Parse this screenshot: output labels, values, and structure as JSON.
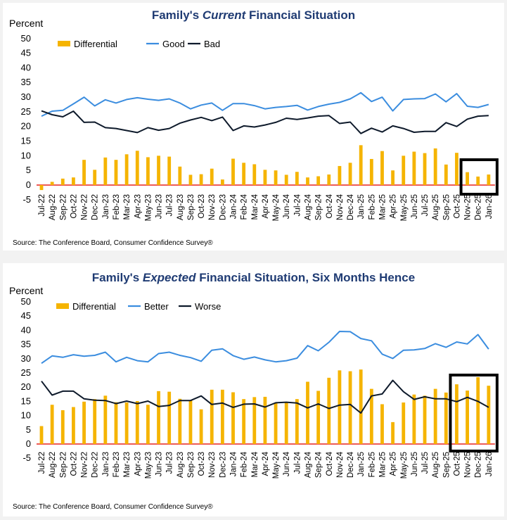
{
  "chart_data": [
    {
      "type": "bar+line",
      "title_pre": "Family's ",
      "title_em": "Current",
      "title_post": " Financial Situation",
      "ylabel": "Percent",
      "ylim": [
        -5,
        50
      ],
      "yticks": [
        -5,
        0,
        5,
        10,
        15,
        20,
        25,
        30,
        35,
        40,
        45,
        50
      ],
      "legend_position": "top-left",
      "categories": [
        "Jul-22",
        "Aug-22",
        "Sep-22",
        "Oct-22",
        "Nov-22",
        "Dec-22",
        "Jan-23",
        "Feb-23",
        "Mar-23",
        "Apr-23",
        "May-23",
        "Jun-23",
        "Jul-23",
        "Aug-23",
        "Sep-23",
        "Oct-23",
        "Nov-23",
        "Dec-23",
        "Jan-24",
        "Feb-24",
        "Mar-24",
        "Apr-24",
        "May-24",
        "Jun-24",
        "Jul-24",
        "Aug-24",
        "Sep-24",
        "Oct-24",
        "Nov-24",
        "Dec-24",
        "Jan-25",
        "Feb-25",
        "Mar-25",
        "Apr-25",
        "May-25",
        "Jun-25",
        "Jul-25",
        "Aug-25",
        "Sep-25",
        "Oct-25",
        "Nov-25",
        "Dec-25",
        "Jan-26"
      ],
      "bar_series": {
        "name": "Differential",
        "color": "#f5b400",
        "values": [
          -1.7,
          1.1,
          2.2,
          2.6,
          8.6,
          5.2,
          9.4,
          8.6,
          10.5,
          11.7,
          9.5,
          10.0,
          9.7,
          6.3,
          3.5,
          3.7,
          5.6,
          1.9,
          9.0,
          7.6,
          7.1,
          5.2,
          5.0,
          3.5,
          4.5,
          2.6,
          3.0,
          3.6,
          6.5,
          7.6,
          13.6,
          8.9,
          11.6,
          5.0,
          10.0,
          11.4,
          10.9,
          12.5,
          7.0,
          11.0,
          4.4,
          2.9,
          3.6
        ]
      },
      "line_series": [
        {
          "name": "Good",
          "color": "#3b8ddf",
          "values": [
            23.5,
            25.2,
            25.5,
            27.7,
            30.0,
            27.0,
            29.1,
            28.0,
            29.2,
            29.8,
            29.3,
            28.9,
            29.4,
            28.0,
            26.0,
            27.3,
            28.0,
            25.5,
            27.8,
            27.8,
            27.1,
            26.0,
            26.5,
            26.8,
            27.2,
            25.6,
            26.8,
            27.6,
            28.2,
            29.4,
            31.5,
            28.5,
            30.0,
            25.3,
            29.2,
            29.4,
            29.5,
            31.1,
            28.4,
            31.2,
            26.9,
            26.5,
            27.5
          ]
        },
        {
          "name": "Bad",
          "color": "#0e1a2b",
          "values": [
            25.3,
            24.0,
            23.3,
            25.2,
            21.4,
            21.5,
            19.6,
            19.3,
            18.6,
            17.9,
            19.6,
            18.7,
            19.3,
            21.1,
            22.2,
            23.1,
            22.0,
            23.2,
            18.6,
            20.2,
            19.8,
            20.5,
            21.4,
            22.8,
            22.4,
            22.9,
            23.5,
            23.7,
            21.0,
            21.5,
            17.6,
            19.4,
            18.1,
            20.2,
            19.3,
            18.0,
            18.3,
            18.3,
            21.3,
            20.0,
            22.5,
            23.5,
            23.7
          ]
        }
      ],
      "highlight_box": "Nov-25 to Jan-26",
      "source": "Source: The Conference Board, Consumer Confidence Survey®"
    },
    {
      "type": "bar+line",
      "title_pre": "Family's ",
      "title_em": "Expected",
      "title_post": " Financial Situation, Six Months Hence",
      "ylabel": "Percent",
      "ylim": [
        -5,
        50
      ],
      "yticks": [
        -5,
        0,
        5,
        10,
        15,
        20,
        25,
        30,
        35,
        40,
        45,
        50
      ],
      "legend_position": "top-left",
      "categories": [
        "Jul-22",
        "Aug-22",
        "Sep-22",
        "Oct-22",
        "Nov-22",
        "Dec-22",
        "Jan-23",
        "Feb-23",
        "Mar-23",
        "Apr-23",
        "May-23",
        "Jun-23",
        "Jul-23",
        "Aug-23",
        "Sep-23",
        "Oct-23",
        "Nov-23",
        "Dec-23",
        "Jan-24",
        "Feb-24",
        "Mar-24",
        "Apr-24",
        "May-24",
        "Jun-24",
        "Jul-24",
        "Aug-24",
        "Sep-24",
        "Oct-24",
        "Nov-24",
        "Dec-24",
        "Jan-25",
        "Feb-25",
        "Mar-25",
        "Apr-25",
        "May-25",
        "Jun-25",
        "Jul-25",
        "Aug-25",
        "Sep-25",
        "Oct-25",
        "Nov-25",
        "Dec-25",
        "Jan-26"
      ],
      "bar_series": {
        "name": "Differential",
        "color": "#f5b400",
        "values": [
          6.3,
          13.8,
          11.9,
          13.0,
          14.9,
          15.8,
          17.0,
          14.7,
          14.6,
          15.1,
          13.8,
          18.6,
          18.4,
          15.9,
          15.4,
          12.2,
          19.1,
          19.1,
          18.2,
          15.8,
          16.5,
          16.6,
          14.4,
          14.6,
          15.8,
          21.9,
          18.7,
          23.3,
          25.9,
          25.6,
          26.2,
          19.4,
          14.0,
          7.7,
          14.6,
          17.4,
          17.0,
          19.4,
          18.1,
          21.0,
          18.8,
          23.5,
          20.5
        ]
      },
      "line_series": [
        {
          "name": "Better",
          "color": "#3b8ddf",
          "values": [
            28.4,
            31.0,
            30.5,
            31.4,
            30.9,
            31.2,
            32.3,
            28.9,
            30.5,
            29.3,
            28.9,
            31.8,
            32.3,
            31.2,
            30.4,
            29.1,
            33.0,
            33.5,
            31.1,
            29.8,
            30.6,
            29.6,
            28.9,
            29.3,
            30.2,
            34.6,
            32.8,
            35.8,
            39.6,
            39.5,
            37.1,
            36.3,
            31.6,
            30.1,
            33.0,
            33.1,
            33.6,
            35.3,
            34.0,
            35.9,
            35.2,
            38.5,
            33.4
          ]
        },
        {
          "name": "Worse",
          "color": "#0e1a2b",
          "values": [
            22.1,
            17.2,
            18.6,
            18.6,
            15.9,
            15.4,
            15.3,
            14.2,
            15.1,
            14.2,
            15.1,
            13.2,
            13.6,
            15.3,
            15.3,
            16.9,
            13.9,
            14.4,
            12.9,
            14.0,
            14.1,
            13.0,
            14.5,
            14.7,
            14.4,
            12.7,
            14.1,
            12.5,
            13.7,
            13.9,
            10.9,
            16.9,
            17.6,
            22.4,
            18.4,
            15.7,
            16.6,
            15.9,
            15.9,
            14.9,
            16.4,
            15.0,
            12.9
          ]
        }
      ],
      "highlight_box": "Oct-25 to Jan-26",
      "source": "Source: The Conference Board, Consumer Confidence Survey®"
    }
  ]
}
